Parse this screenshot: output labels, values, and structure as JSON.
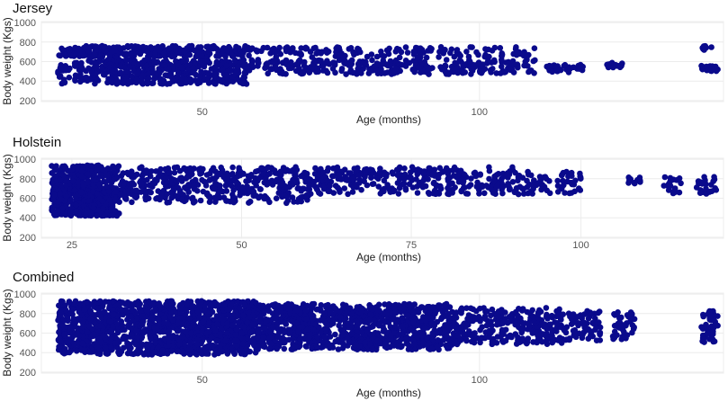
{
  "colors": {
    "points": "#0a0a8c",
    "grid": "#ececec",
    "background": "#ffffff"
  },
  "chart_data": [
    {
      "type": "scatter",
      "title": "Jersey",
      "xlabel": "Age (months)",
      "ylabel": "Body weight (Kgs)",
      "xlim": [
        21,
        144
      ],
      "ylim": [
        190,
        1010
      ],
      "x_ticks": [
        50,
        100
      ],
      "y_ticks": [
        200,
        400,
        600,
        800,
        1000
      ],
      "grid": true,
      "point_count": 1300,
      "clusters": [
        {
          "x": [
            24,
            58
          ],
          "y": [
            370,
            620
          ],
          "weight": 3
        },
        {
          "x": [
            24,
            58
          ],
          "y": [
            650,
            760
          ],
          "weight": 2
        },
        {
          "x": [
            58,
            110
          ],
          "y": [
            470,
            620
          ],
          "weight": 2
        },
        {
          "x": [
            58,
            110
          ],
          "y": [
            640,
            750
          ],
          "weight": 1
        },
        {
          "x": [
            112,
            119
          ],
          "y": [
            490,
            570
          ],
          "weight": 0.25
        },
        {
          "x": [
            123,
            126
          ],
          "y": [
            540,
            590
          ],
          "weight": 0.12
        },
        {
          "x": [
            140,
            143
          ],
          "y": [
            500,
            560
          ],
          "weight": 0.15
        },
        {
          "x": [
            140,
            142
          ],
          "y": [
            720,
            760
          ],
          "weight": 0.05
        }
      ]
    },
    {
      "type": "scatter",
      "title": "Holstein",
      "xlabel": "Age (months)",
      "ylabel": "Body weight (Kgs)",
      "xlim": [
        20.5,
        121
      ],
      "ylim": [
        190,
        1010
      ],
      "x_ticks": [
        25,
        50,
        75,
        100
      ],
      "y_ticks": [
        200,
        400,
        600,
        800,
        1000
      ],
      "grid": true,
      "point_count": 1500,
      "clusters": [
        {
          "x": [
            22,
            32
          ],
          "y": [
            420,
            720
          ],
          "weight": 3
        },
        {
          "x": [
            22,
            32
          ],
          "y": [
            720,
            940
          ],
          "weight": 1.2
        },
        {
          "x": [
            32,
            60
          ],
          "y": [
            550,
            920
          ],
          "weight": 3
        },
        {
          "x": [
            60,
            90
          ],
          "y": [
            640,
            920
          ],
          "weight": 2.2
        },
        {
          "x": [
            90,
            100
          ],
          "y": [
            640,
            880
          ],
          "weight": 0.5
        },
        {
          "x": [
            107,
            109
          ],
          "y": [
            740,
            820
          ],
          "weight": 0.08
        },
        {
          "x": [
            112,
            115
          ],
          "y": [
            650,
            830
          ],
          "weight": 0.12
        },
        {
          "x": [
            117,
            120
          ],
          "y": [
            640,
            840
          ],
          "weight": 0.15
        }
      ]
    },
    {
      "type": "scatter",
      "title": "Combined",
      "xlabel": "Age (months)",
      "ylabel": "Body weight (Kgs)",
      "xlim": [
        21,
        144
      ],
      "ylim": [
        190,
        1010
      ],
      "x_ticks": [
        50,
        100
      ],
      "y_ticks": [
        200,
        400,
        600,
        800,
        1000
      ],
      "grid": true,
      "point_count": 2800,
      "clusters": [
        {
          "x": [
            24,
            60
          ],
          "y": [
            380,
            930
          ],
          "weight": 5
        },
        {
          "x": [
            60,
            95
          ],
          "y": [
            430,
            900
          ],
          "weight": 3.5
        },
        {
          "x": [
            95,
            115
          ],
          "y": [
            480,
            860
          ],
          "weight": 1
        },
        {
          "x": [
            115,
            122
          ],
          "y": [
            510,
            830
          ],
          "weight": 0.25
        },
        {
          "x": [
            124,
            128
          ],
          "y": [
            530,
            830
          ],
          "weight": 0.15
        },
        {
          "x": [
            140,
            143
          ],
          "y": [
            500,
            840
          ],
          "weight": 0.18
        }
      ]
    }
  ]
}
